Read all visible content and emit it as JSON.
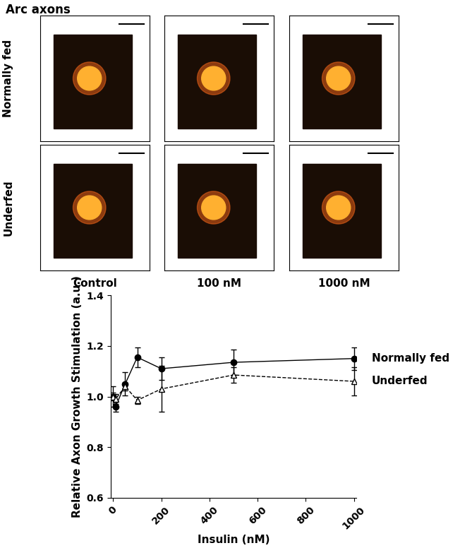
{
  "figure_title": "Arc axons",
  "panel_rows": [
    "Normally fed",
    "Underfed"
  ],
  "panel_columns": [
    "Control",
    "100 nM",
    "1000 nM"
  ],
  "chart_data": {
    "type": "line",
    "xlabel": "Insulin (nM)",
    "ylabel": "Relative Axon Growth Stimulation (a.u.)",
    "x": [
      0,
      10,
      50,
      100,
      200,
      500,
      1000
    ],
    "series": [
      {
        "name": "Normally fed",
        "color": "#000000",
        "marker": "circle",
        "line_style": "solid",
        "values": [
          1.0,
          0.96,
          1.05,
          1.155,
          1.11,
          1.135,
          1.15
        ],
        "errors": [
          0.015,
          0.02,
          0.045,
          0.04,
          0.045,
          0.05,
          0.045
        ]
      },
      {
        "name": "Underfed",
        "color": "#000000",
        "marker": "triangle",
        "line_style": "dashed",
        "values": [
          1.0,
          0.99,
          1.04,
          0.985,
          1.03,
          1.085,
          1.06
        ],
        "errors": [
          0.04,
          0.02,
          0.015,
          0.015,
          0.09,
          0.03,
          0.055
        ]
      }
    ],
    "xlim": [
      -10,
      1010
    ],
    "xticks": [
      0,
      200,
      400,
      600,
      800,
      1000
    ],
    "ylim": [
      0.6,
      1.4
    ],
    "yticks": [
      0.6,
      0.8,
      1.0,
      1.2,
      1.4
    ],
    "grid": false
  }
}
